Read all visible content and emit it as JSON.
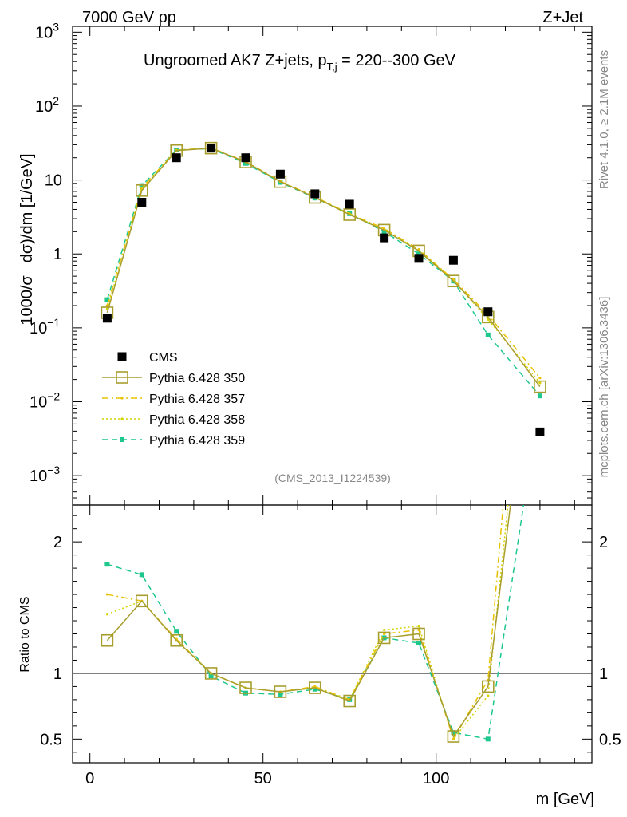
{
  "chart_data": {
    "type": "scatter",
    "header_left": "7000 GeV pp",
    "header_right": "Z+Jet",
    "title_main": "Ungroomed AK7 Z+jets, p",
    "title_sub": "T,j",
    "title_tail": " = 220--300 GeV",
    "ylabel_a": "1000/σ",
    "ylabel_b": "dσ)/dm [1/GeV]",
    "ratio_ylabel": "Ratio to CMS",
    "xlabel": "m [GeV]",
    "side_label_top": "Rivet 4.1.0, ≥ 2.1M events",
    "side_label_bottom": "mcplots.cern.ch [arXiv:1306.3436]",
    "analysis_id": "(CMS_2013_I1224539)",
    "xlim": [
      -5,
      145
    ],
    "ylim_log": [
      0.0004,
      1200
    ],
    "ratio_ylim": [
      0.32,
      2.28
    ],
    "x_ticks": [
      "0",
      "50",
      "100"
    ],
    "x_tick_values": [
      0,
      50,
      100
    ],
    "y_ticks": [
      {
        "value": 1000,
        "base": "10",
        "exp": "3"
      },
      {
        "value": 100,
        "base": "10",
        "exp": "2"
      },
      {
        "value": 10,
        "base": "10",
        "exp": ""
      },
      {
        "value": 1,
        "base": "1",
        "exp": ""
      },
      {
        "value": 0.1,
        "base": "10",
        "exp": "−1"
      },
      {
        "value": 0.01,
        "base": "10",
        "exp": "−2"
      },
      {
        "value": 0.001,
        "base": "10",
        "exp": "−3"
      }
    ],
    "ratio_ticks": [
      "2",
      "1",
      "0.5"
    ],
    "ratio_tick_values": [
      2,
      1,
      0.5
    ],
    "x": [
      5,
      15,
      25,
      35,
      45,
      55,
      65,
      75,
      85,
      95,
      105,
      115,
      130
    ],
    "series": [
      {
        "name": "CMS",
        "color": "#000000",
        "style": "data",
        "values": [
          0.135,
          5.0,
          20.0,
          27.0,
          20.0,
          12.0,
          6.5,
          4.7,
          1.65,
          0.87,
          0.82,
          0.165,
          0.0039
        ],
        "ratio": []
      },
      {
        "name": "Pythia 6.428 350",
        "color": "#a89e2e",
        "style": "solid",
        "values": [
          0.16,
          7.2,
          25.0,
          27.0,
          17.5,
          9.5,
          5.8,
          3.4,
          2.1,
          1.1,
          0.43,
          0.14,
          0.016
        ],
        "ratio": [
          1.25,
          1.55,
          1.25,
          1.0,
          0.89,
          0.86,
          0.89,
          0.79,
          1.27,
          1.3,
          0.52,
          0.9,
          4.1
        ]
      },
      {
        "name": "Pythia 6.428 357",
        "color": "#e8c200",
        "style": "dashdot",
        "values": [
          0.2,
          7.8,
          25.3,
          27.2,
          17.8,
          9.6,
          5.9,
          3.5,
          2.2,
          1.15,
          0.45,
          0.15,
          0.021
        ],
        "ratio": [
          1.6,
          1.55,
          1.26,
          1.0,
          0.89,
          0.86,
          0.9,
          0.8,
          1.3,
          1.33,
          0.5,
          0.95,
          5.5
        ]
      },
      {
        "name": "Pythia 6.428 358",
        "color": "#d4d400",
        "style": "dotted",
        "values": [
          0.18,
          7.5,
          25.1,
          27.1,
          17.6,
          9.55,
          5.85,
          3.45,
          2.15,
          1.12,
          0.44,
          0.13,
          0.018
        ],
        "ratio": [
          1.45,
          1.55,
          1.25,
          1.0,
          0.89,
          0.86,
          0.89,
          0.8,
          1.33,
          1.36,
          0.5,
          0.83,
          4.6
        ]
      },
      {
        "name": "Pythia 6.428 359",
        "color": "#1ec88c",
        "style": "dashed",
        "values": [
          0.24,
          8.4,
          25.5,
          26.6,
          16.8,
          9.3,
          5.7,
          3.5,
          2.0,
          1.0,
          0.43,
          0.08,
          0.012
        ],
        "ratio": [
          1.83,
          1.75,
          1.32,
          0.98,
          0.85,
          0.84,
          0.88,
          0.8,
          1.27,
          1.23,
          0.55,
          0.5,
          3.1
        ]
      }
    ]
  }
}
